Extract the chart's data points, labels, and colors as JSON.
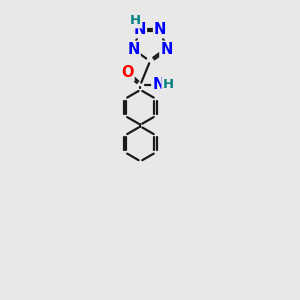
{
  "bg_color": "#e8e8e8",
  "bond_color": "#1a1a1a",
  "N_color": "#0000ff",
  "O_color": "#ff0000",
  "H_color": "#008080",
  "font_size_atom": 10.5,
  "font_size_H": 9.5,
  "line_width": 1.6,
  "fig_size": [
    3.0,
    3.0
  ],
  "dpi": 100,
  "xlim": [
    2.5,
    7.5
  ],
  "ylim": [
    0.5,
    14.5
  ]
}
